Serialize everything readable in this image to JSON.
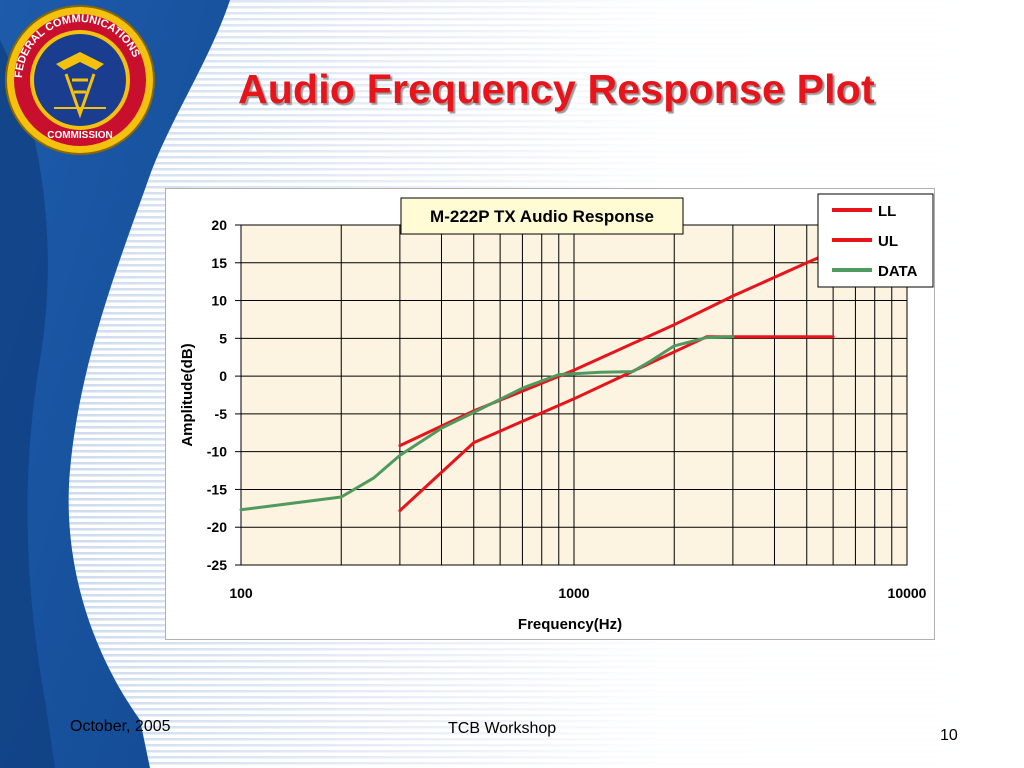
{
  "slide": {
    "title": "Audio Frequency Response Plot",
    "footer_left": "October, 2005",
    "footer_center": "TCB Workshop",
    "page_number": "10",
    "seal_text": "FEDERAL COMMUNICATIONS COMMISSION",
    "colors": {
      "title": "#e8141c",
      "background_blue": "#1e5aa8",
      "plot_area": "#fdf3e1",
      "grid": "#000000"
    }
  },
  "chart_data": {
    "type": "line",
    "title": "M-222P TX Audio Response",
    "xlabel": "Frequency(Hz)",
    "ylabel": "Amplitude(dB)",
    "xscale": "log",
    "xlim": [
      100,
      10000
    ],
    "ylim": [
      -25,
      20
    ],
    "xticks": [
      "100",
      "1000",
      "10000"
    ],
    "yticks": [
      "20",
      "15",
      "10",
      "5",
      "0",
      "-5",
      "-10",
      "-15",
      "-20",
      "-25"
    ],
    "grid": true,
    "legend_position": "top-right",
    "series": [
      {
        "name": "LL",
        "color": "#e8141c",
        "x": [
          300,
          500,
          1000,
          2500,
          3000,
          6000
        ],
        "y": [
          -17.8,
          -8.8,
          -3.0,
          5.2,
          5.2,
          5.2
        ]
      },
      {
        "name": "UL",
        "color": "#e8141c",
        "x": [
          300,
          500,
          1000,
          2000,
          3000,
          5000,
          6000
        ],
        "y": [
          -9.2,
          -4.6,
          0.8,
          6.8,
          10.6,
          15.0,
          16.5
        ]
      },
      {
        "name": "DATA",
        "color": "#4f9a5e",
        "x": [
          100,
          200,
          250,
          300,
          400,
          500,
          700,
          900,
          1000,
          1200,
          1500,
          1700,
          2000,
          2500,
          3000
        ],
        "y": [
          -17.7,
          -16.0,
          -13.5,
          -10.5,
          -6.9,
          -4.8,
          -1.6,
          0.2,
          0.3,
          0.5,
          0.6,
          2.0,
          4.0,
          5.1,
          5.2
        ]
      }
    ]
  }
}
